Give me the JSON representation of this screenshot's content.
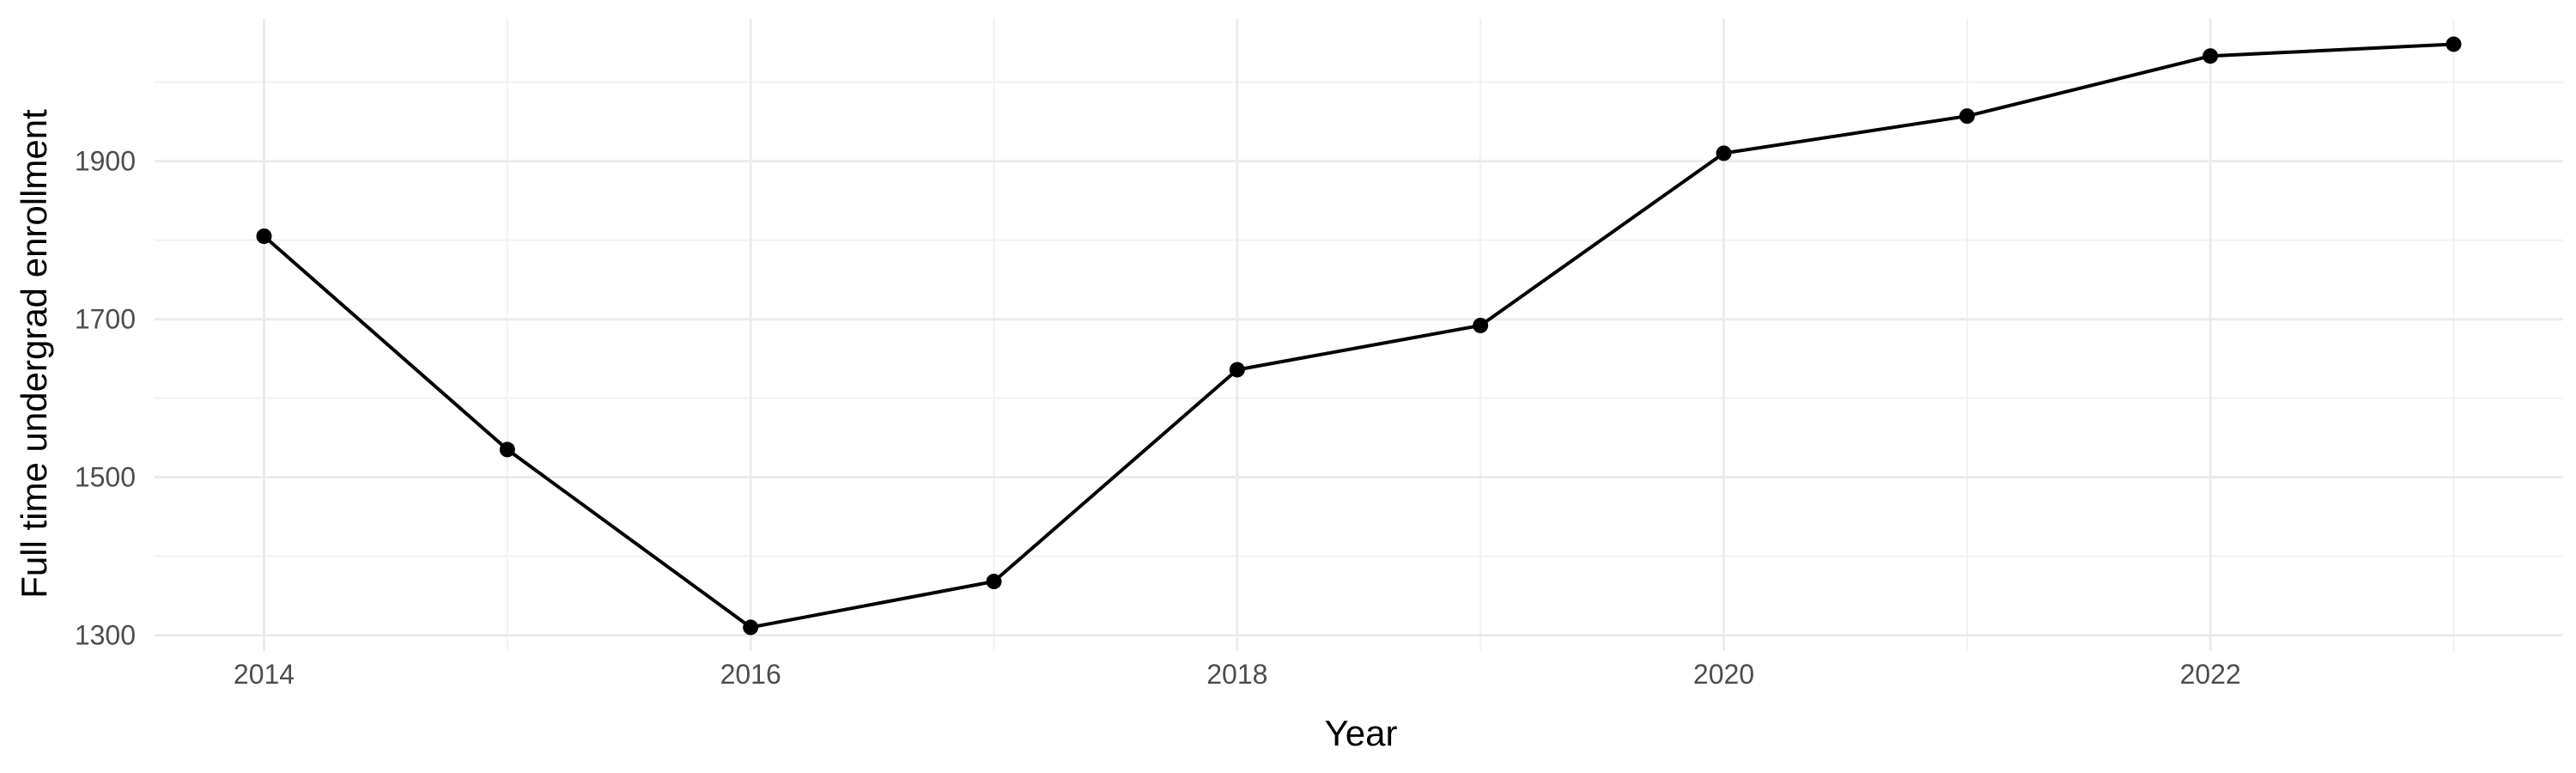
{
  "chart_data": {
    "type": "line",
    "xlabel": "Year",
    "ylabel": "Full time undergrad enrollment",
    "x": [
      2014,
      2015,
      2016,
      2017,
      2018,
      2019,
      2020,
      2021,
      2022,
      2023
    ],
    "series": [
      {
        "values": [
          1805,
          1535,
          1310,
          1368,
          1636,
          1692,
          1910,
          1957,
          2033,
          2048
        ]
      }
    ],
    "x_ticks": [
      2014,
      2016,
      2018,
      2020,
      2022
    ],
    "y_ticks": [
      1300,
      1500,
      1700,
      1900
    ],
    "xlim": [
      2013.55,
      2023.45
    ],
    "ylim": [
      1280,
      2080
    ],
    "grid": true,
    "line_color": "#000000",
    "point_color": "#000000",
    "background_color": "#ffffff"
  }
}
